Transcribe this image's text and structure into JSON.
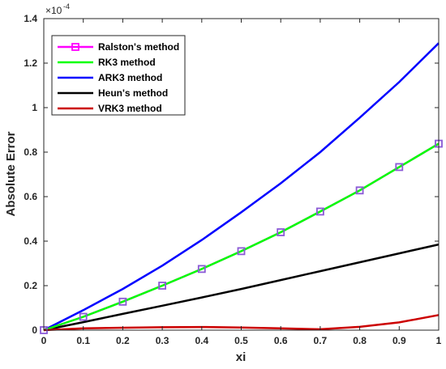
{
  "chart_data": {
    "type": "line",
    "xlabel": "xi",
    "ylabel": "Absolute Error",
    "y_multiplier_prefix": "×10",
    "y_multiplier_exp": "-4",
    "xlim": [
      0,
      1
    ],
    "ylim": [
      0,
      1.4
    ],
    "x_ticks": [
      0,
      0.1,
      0.2,
      0.3,
      0.4,
      0.5,
      0.6,
      0.7,
      0.8,
      0.9,
      1
    ],
    "x_tick_labels": [
      "0",
      "0.1",
      "0.2",
      "0.3",
      "0.4",
      "0.5",
      "0.6",
      "0.7",
      "0.8",
      "0.9",
      "1"
    ],
    "y_ticks": [
      0,
      0.2,
      0.4,
      0.6,
      0.8,
      1.0,
      1.2,
      1.4
    ],
    "y_tick_labels": [
      "0",
      "0.2",
      "0.4",
      "0.6",
      "0.8",
      "1",
      "1.2",
      "1.4"
    ],
    "grid": false,
    "legend_position": "top-left",
    "x": [
      0,
      0.1,
      0.2,
      0.3,
      0.4,
      0.5,
      0.6,
      0.7,
      0.8,
      0.9,
      1
    ],
    "series": [
      {
        "name": "Ralston's method",
        "color": "#ff00ff",
        "marker": "square",
        "marker_edge": "#8b59d6",
        "values": [
          0,
          0.06,
          0.128,
          0.2,
          0.275,
          0.355,
          0.44,
          0.533,
          0.628,
          0.733,
          0.838
        ]
      },
      {
        "name": "RK3 method",
        "color": "#00ff00",
        "marker": "none",
        "values": [
          0,
          0.06,
          0.128,
          0.2,
          0.275,
          0.355,
          0.44,
          0.533,
          0.628,
          0.733,
          0.838
        ]
      },
      {
        "name": "ARK3 method",
        "color": "#0000ff",
        "marker": "none",
        "values": [
          0,
          0.09,
          0.185,
          0.29,
          0.405,
          0.53,
          0.66,
          0.8,
          0.955,
          1.115,
          1.29
        ]
      },
      {
        "name": " Heun's method",
        "color": "#000000",
        "marker": "none",
        "values": [
          0,
          0.036,
          0.073,
          0.11,
          0.147,
          0.185,
          0.225,
          0.265,
          0.305,
          0.345,
          0.385
        ]
      },
      {
        "name": "VRK3 method",
        "color": "#cc0000",
        "marker": "none",
        "values": [
          0,
          0.008,
          0.011,
          0.013,
          0.014,
          0.012,
          0.008,
          0.004,
          0.015,
          0.035,
          0.068
        ]
      }
    ]
  }
}
